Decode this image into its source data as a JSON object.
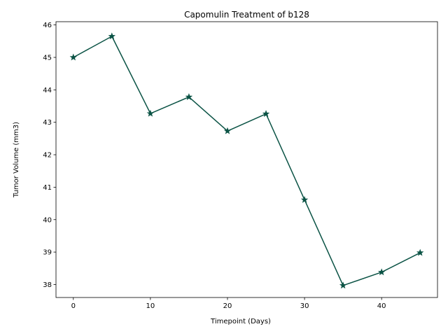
{
  "chart_data": {
    "type": "line",
    "title": "Capomulin Treatment of b128",
    "xlabel": "Timepoint (Days)",
    "ylabel": "Tumor Volume (mm3)",
    "x": [
      0,
      5,
      10,
      15,
      20,
      25,
      30,
      35,
      40,
      45
    ],
    "series": [
      {
        "values": [
          45.0,
          45.65,
          43.27,
          43.78,
          42.73,
          43.26,
          40.61,
          37.97,
          38.38,
          38.98
        ],
        "color": "#0b5345",
        "marker": "star"
      }
    ],
    "xlim": [
      -2.25,
      47.25
    ],
    "ylim": [
      37.6,
      46.1
    ],
    "xticks": [
      0,
      10,
      20,
      30,
      40
    ],
    "yticks": [
      38,
      39,
      40,
      41,
      42,
      43,
      44,
      45,
      46
    ],
    "grid": false,
    "legend": "none"
  }
}
